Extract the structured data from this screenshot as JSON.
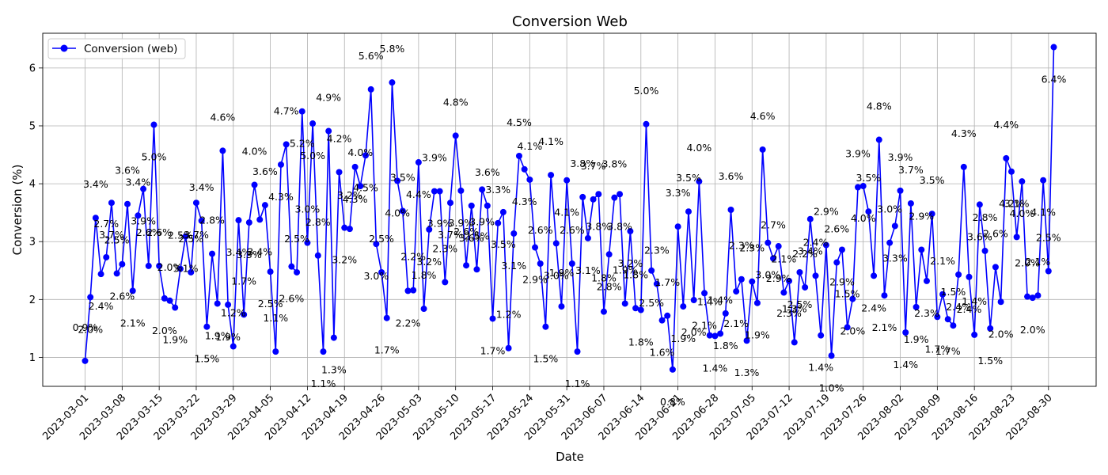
{
  "chart_data": {
    "type": "line",
    "title": "Conversion Web",
    "xlabel": "Date",
    "ylabel": "Conversion (%)",
    "ylim": [
      0.5,
      6.6
    ],
    "xlim": [
      "2023-02-21",
      "2023-09-08"
    ],
    "grid": true,
    "legend": "top-left",
    "line_color": "#0000ff",
    "x_ticks": [
      "2023-03-01",
      "2023-03-08",
      "2023-03-15",
      "2023-03-22",
      "2023-03-29",
      "2023-04-05",
      "2023-04-12",
      "2023-04-19",
      "2023-04-26",
      "2023-05-03",
      "2023-05-10",
      "2023-05-17",
      "2023-05-24",
      "2023-05-31",
      "2023-06-07",
      "2023-06-14",
      "2023-06-21",
      "2023-06-28",
      "2023-07-05",
      "2023-07-12",
      "2023-07-19",
      "2023-07-26",
      "2023-08-02",
      "2023-08-09",
      "2023-08-16",
      "2023-08-23",
      "2023-08-30"
    ],
    "y_ticks": [
      1,
      2,
      3,
      4,
      5,
      6
    ],
    "x_start": "2023-03-01",
    "series": [
      {
        "name": "Conversion (web)",
        "values": [
          0.94,
          2.04,
          3.41,
          2.44,
          2.73,
          3.67,
          2.45,
          2.61,
          3.65,
          2.15,
          3.45,
          3.91,
          2.58,
          5.02,
          2.58,
          2.02,
          1.98,
          1.86,
          2.53,
          3.09,
          2.47,
          3.67,
          3.36,
          1.53,
          2.79,
          1.93,
          4.57,
          1.91,
          1.19,
          3.37,
          1.74,
          3.33,
          3.98,
          3.38,
          3.63,
          2.48,
          1.1,
          4.33,
          4.68,
          2.57,
          2.47,
          5.25,
          2.98,
          5.04,
          2.76,
          1.1,
          4.91,
          1.34,
          4.2,
          3.24,
          3.22,
          4.29,
          3.96,
          4.49,
          5.63,
          2.96,
          2.47,
          1.68,
          5.75,
          4.05,
          3.53,
          2.15,
          2.16,
          4.37,
          1.84,
          3.21,
          3.87,
          3.87,
          2.3,
          3.67,
          4.83,
          3.88,
          2.59,
          3.62,
          2.52,
          3.9,
          3.62,
          1.67,
          3.32,
          3.51,
          1.16,
          3.14,
          4.48,
          4.25,
          4.07,
          2.9,
          2.62,
          1.53,
          4.15,
          2.97,
          1.88,
          4.06,
          2.62,
          1.1,
          3.77,
          3.06,
          3.73,
          3.82,
          1.79,
          2.78,
          3.76,
          3.82,
          1.93,
          3.18,
          1.85,
          1.82,
          5.03,
          2.5,
          2.27,
          1.64,
          1.72,
          0.79,
          3.26,
          1.88,
          3.52,
          1.99,
          4.04,
          2.11,
          1.38,
          1.37,
          1.41,
          1.76,
          3.55,
          2.14,
          2.35,
          1.29,
          2.31,
          1.94,
          4.59,
          2.98,
          2.71,
          2.92,
          2.12,
          2.32,
          1.26,
          2.47,
          2.21,
          3.39,
          2.41,
          1.38,
          2.94,
          1.03,
          2.64,
          2.86,
          1.52,
          2.01,
          3.94,
          3.96,
          3.52,
          2.41,
          4.76,
          2.07,
          2.98,
          3.27,
          3.88,
          1.43,
          3.66,
          1.87,
          2.86,
          2.32,
          3.48,
          1.7,
          2.09,
          1.66,
          1.55,
          2.43,
          4.29,
          2.39,
          1.39,
          3.64,
          2.84,
          1.5,
          2.56,
          1.96,
          4.44,
          4.21,
          3.08,
          4.04,
          2.05,
          2.03,
          2.07,
          4.06,
          2.49,
          6.36
        ]
      }
    ],
    "data_labels": [
      "0.9%",
      "2.0%",
      "3.4%",
      "2.4%",
      "2.7%",
      "3.7%",
      "2.5%",
      "2.6%",
      "3.6%",
      "2.1%",
      "3.4%",
      "3.9%",
      "2.6%",
      "5.0%",
      "2.6%",
      "2.0%",
      "2.0%",
      "1.9%",
      "2.5%",
      "3.1%",
      "2.5%",
      "3.7%",
      "3.4%",
      "1.5%",
      "2.8%",
      "1.9%",
      "4.6%",
      "1.9%",
      "1.2%",
      "3.4%",
      "1.7%",
      "3.3%",
      "4.0%",
      "3.4%",
      "3.6%",
      "2.5%",
      "1.1%",
      "4.3%",
      "4.7%",
      "2.6%",
      "2.5%",
      "5.2%",
      "3.0%",
      "5.0%",
      "2.8%",
      "1.1%",
      "4.9%",
      "1.3%",
      "4.2%",
      "3.2%",
      "3.2%",
      "4.3%",
      "4.0%",
      "4.5%",
      "5.6%",
      "3.0%",
      "2.5%",
      "1.7%",
      "5.8%",
      "4.0%",
      "3.5%",
      "2.2%",
      "2.2%",
      "4.4%",
      "1.8%",
      "3.2%",
      "3.9%",
      "3.9%",
      "2.3%",
      "3.7%",
      "4.8%",
      "3.9%",
      "2.6%",
      "3.6%",
      "2.5%",
      "3.9%",
      "3.6%",
      "1.7%",
      "3.3%",
      "3.5%",
      "1.2%",
      "3.1%",
      "4.5%",
      "4.3%",
      "4.1%",
      "2.9%",
      "2.6%",
      "1.5%",
      "4.1%",
      "3.0%",
      "1.9%",
      "4.1%",
      "2.6%",
      "1.1%",
      "3.8%",
      "3.1%",
      "3.7%",
      "3.8%",
      "1.8%",
      "2.8%",
      "3.8%",
      "3.8%",
      "1.9%",
      "3.2%",
      "1.8%",
      "1.8%",
      "5.0%",
      "2.5%",
      "2.3%",
      "1.6%",
      "1.7%",
      "0.8%",
      "3.3%",
      "1.9%",
      "3.5%",
      "2.0%",
      "4.0%",
      "2.1%",
      "1.4%",
      "1.4%",
      "1.4%",
      "1.8%",
      "3.6%",
      "2.1%",
      "2.3%",
      "1.3%",
      "2.3%",
      "1.9%",
      "4.6%",
      "3.0%",
      "2.7%",
      "2.9%",
      "2.1%",
      "2.3%",
      "1.3%",
      "2.5%",
      "2.2%",
      "3.4%",
      "2.4%",
      "1.4%",
      "2.9%",
      "1.0%",
      "2.6%",
      "2.9%",
      "1.5%",
      "2.0%",
      "3.9%",
      "4.0%",
      "3.5%",
      "2.4%",
      "4.8%",
      "2.1%",
      "3.0%",
      "3.3%",
      "3.9%",
      "1.4%",
      "3.7%",
      "1.9%",
      "2.9%",
      "2.3%",
      "3.5%",
      "1.7%",
      "2.1%",
      "1.7%",
      "1.5%",
      "2.4%",
      "4.3%",
      "2.4%",
      "1.4%",
      "3.6%",
      "2.8%",
      "1.5%",
      "2.6%",
      "2.0%",
      "4.4%",
      "4.2%",
      "3.1%",
      "4.0%",
      "2.0%",
      "2.0%",
      "2.1%",
      "4.1%",
      "2.5%",
      "6.4%"
    ]
  }
}
